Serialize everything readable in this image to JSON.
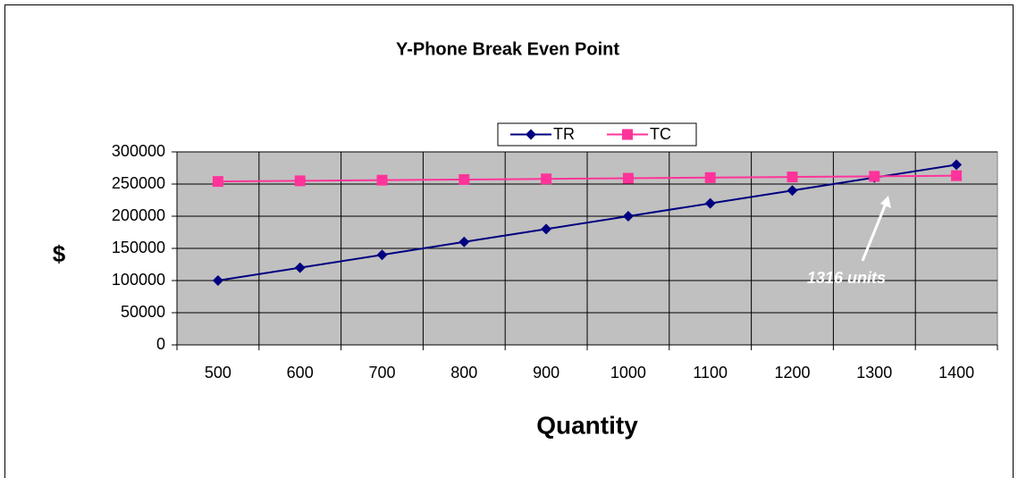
{
  "chart_data": {
    "type": "line",
    "title": "Y-Phone Break Even Point",
    "x_label": "Quantity",
    "y_label": "$",
    "categories": [
      "500",
      "600",
      "700",
      "800",
      "900",
      "1000",
      "1100",
      "1200",
      "1300",
      "1400"
    ],
    "series": [
      {
        "name": "TR",
        "color": "#000080",
        "marker": "diamond",
        "values": [
          100000,
          120000,
          140000,
          160000,
          180000,
          200000,
          220000,
          240000,
          260000,
          280000
        ]
      },
      {
        "name": "TC",
        "color": "#ff3399",
        "marker": "square",
        "values": [
          254000,
          255000,
          256000,
          257000,
          258000,
          259000,
          260000,
          261000,
          262000,
          263000
        ]
      }
    ],
    "ylim": [
      0,
      300000
    ],
    "yticks": [
      0,
      50000,
      100000,
      150000,
      200000,
      250000,
      300000
    ],
    "grid": true,
    "legend": "top",
    "annotation": {
      "text": "1316 units",
      "x": 1316
    }
  }
}
